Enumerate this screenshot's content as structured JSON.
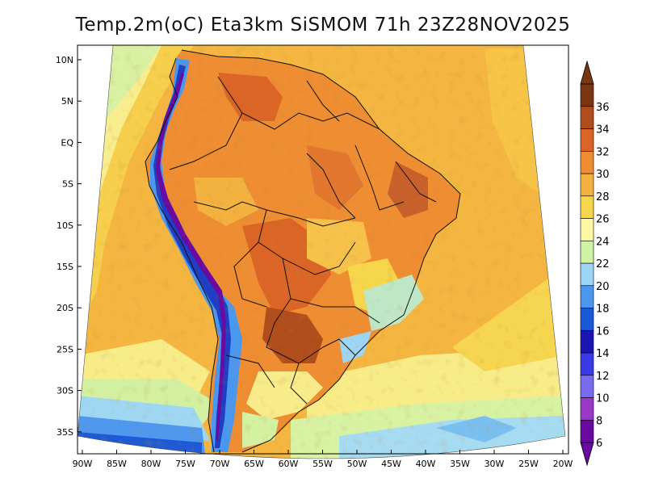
{
  "title": "Temp.2m(oC) Eta3km SiSMOM 71h 23Z28NOV2025",
  "map": {
    "variable": "2m temperature",
    "units": "oC",
    "lon_labels": [
      "90W",
      "85W",
      "80W",
      "75W",
      "70W",
      "65W",
      "60W",
      "55W",
      "50W",
      "45W",
      "40W",
      "35W",
      "30W",
      "25W",
      "20W"
    ],
    "lat_labels": [
      "10N",
      "5N",
      "EQ",
      "5S",
      "10S",
      "15S",
      "20S",
      "25S",
      "30S",
      "35S"
    ]
  },
  "colorbar": {
    "labels": [
      "6",
      "8",
      "10",
      "12",
      "14",
      "16",
      "18",
      "20",
      "22",
      "24",
      "26",
      "28",
      "30",
      "32",
      "34",
      "36"
    ],
    "colors": [
      "#6a0aa0",
      "#9a39c8",
      "#7a6cf0",
      "#3a3ae6",
      "#1c15b4",
      "#1859d8",
      "#4a97ef",
      "#9dd6f5",
      "#d0f3a3",
      "#fbf7a2",
      "#f6d64a",
      "#f3b13f",
      "#ee8d32",
      "#db6527",
      "#b04d1c",
      "#7a3513"
    ]
  },
  "colors": {
    "ocean_warm": "#f6b541",
    "ocean_mid": "#f5d24c",
    "ocean_cool": "#d6f0a0",
    "ocean_cold": "#8ccff2",
    "land_hot": "#e88a36",
    "land_very_hot": "#c7602a",
    "andes_cold": "#6a2cb0"
  }
}
